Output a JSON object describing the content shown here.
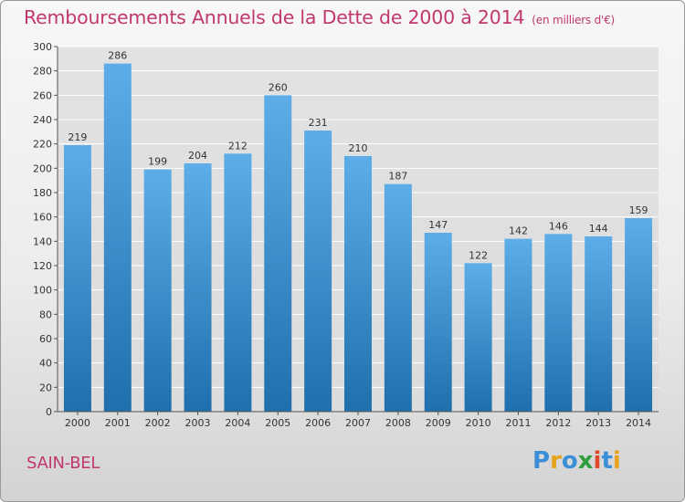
{
  "header": {
    "title": "Remboursements Annuels de la Dette de 2000 à 2014",
    "unit": "(en milliers d'€)"
  },
  "footer": {
    "commune": "SAIN-BEL",
    "logo_text": "Proxiti"
  },
  "colors": {
    "bar_top": "#5dade8",
    "bar_bottom": "#1f6fad",
    "title": "#c0386e",
    "grid": "#ffffff"
  },
  "chart_data": {
    "type": "bar",
    "title": "Remboursements Annuels de la Dette de 2000 à 2014",
    "unit": "(en milliers d'€)",
    "categories": [
      "2000",
      "2001",
      "2002",
      "2003",
      "2004",
      "2005",
      "2006",
      "2007",
      "2008",
      "2009",
      "2010",
      "2011",
      "2012",
      "2013",
      "2014"
    ],
    "values": [
      219,
      286,
      199,
      204,
      212,
      260,
      231,
      210,
      187,
      147,
      122,
      142,
      146,
      144,
      159
    ],
    "ylim": [
      0,
      300
    ],
    "yticks": [
      0,
      20,
      40,
      60,
      80,
      100,
      120,
      140,
      160,
      180,
      200,
      220,
      240,
      260,
      280,
      300
    ],
    "grid": true,
    "xlabel": "",
    "ylabel": ""
  }
}
